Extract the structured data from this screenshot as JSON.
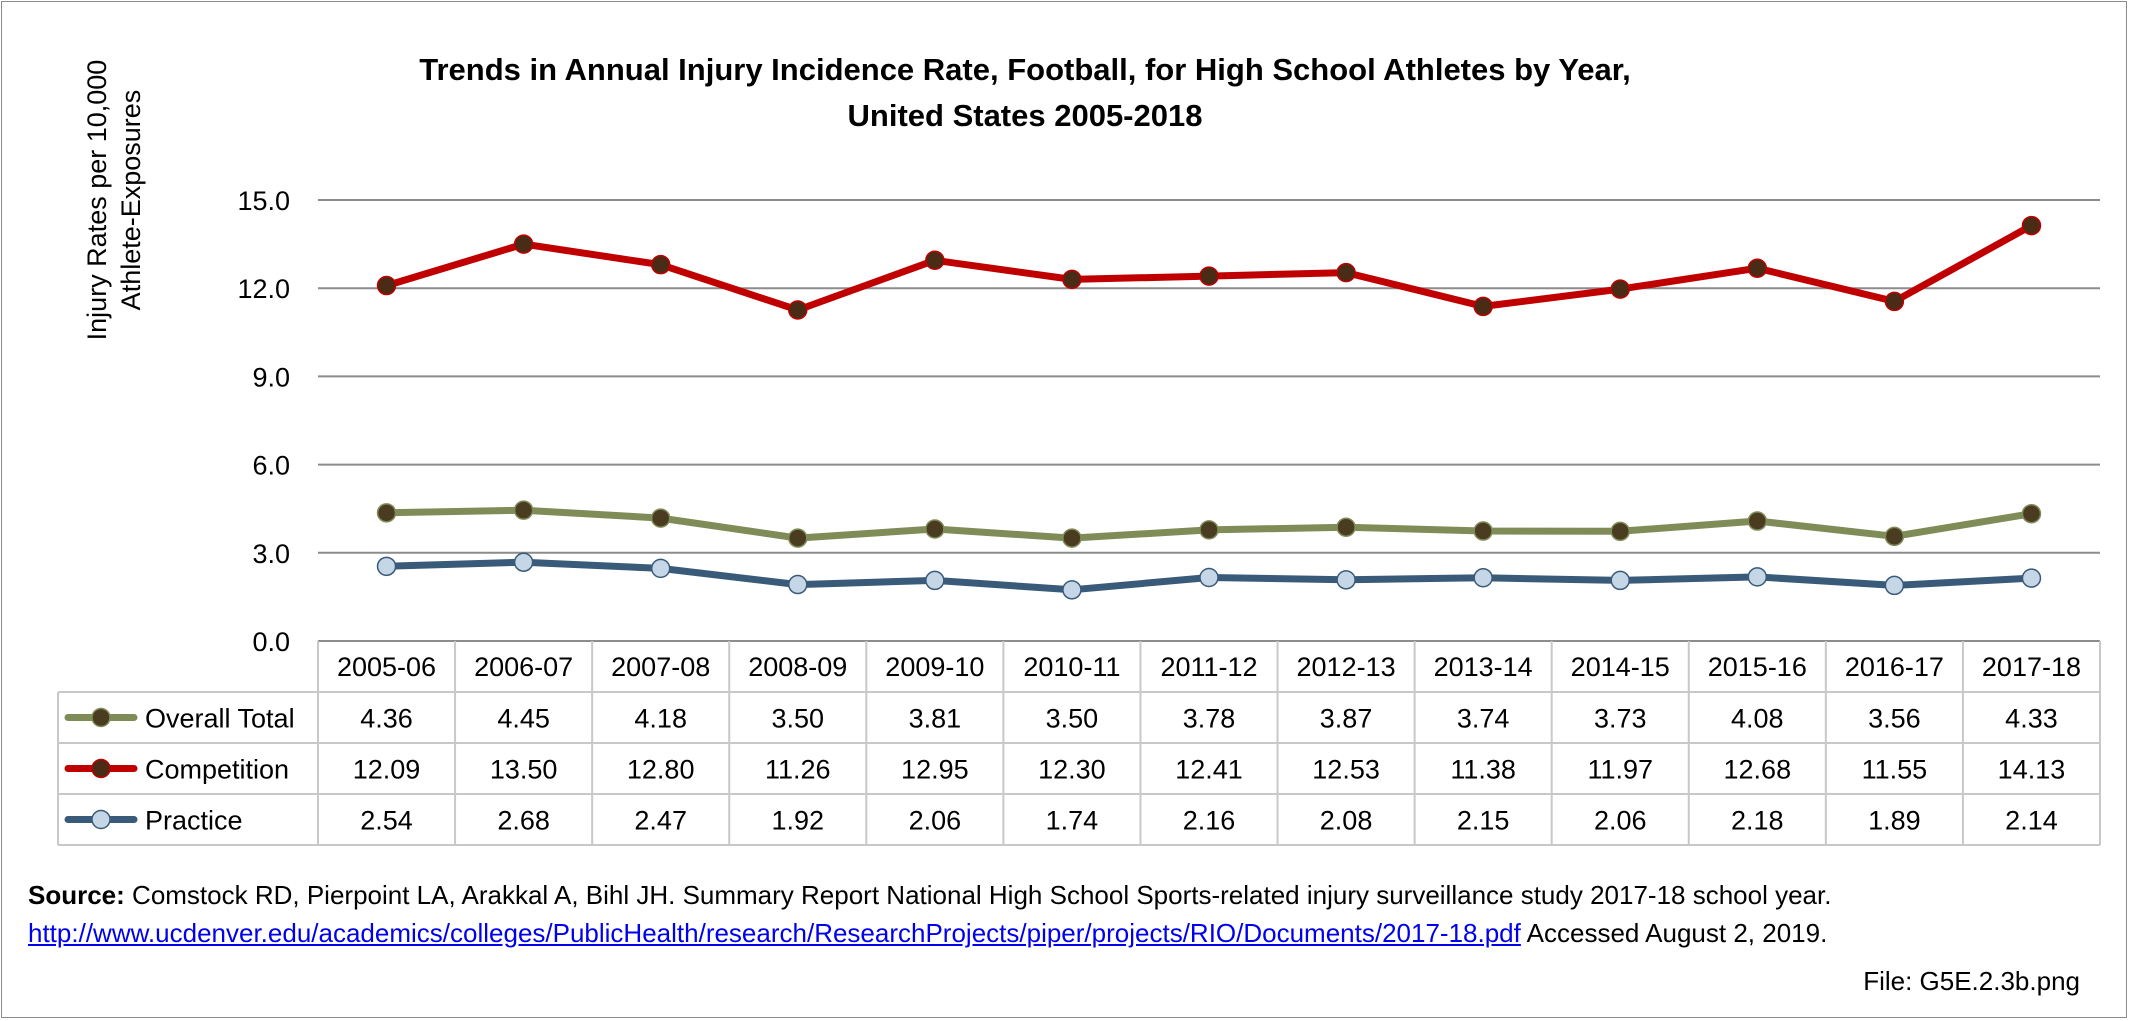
{
  "chart_data": {
    "type": "line",
    "title_line1": "Trends in Annual Injury Incidence Rate, Football, for High School Athletes by Year,",
    "title_line2": "United States 2005-2018",
    "ylabel_line1": "Injury Rates per 10,000",
    "ylabel_line2": "Athlete-Exposures",
    "ylim": [
      0,
      15
    ],
    "yticks": [
      0,
      3,
      6,
      9,
      12,
      15
    ],
    "ytick_labels": [
      "0.0",
      "3.0",
      "6.0",
      "9.0",
      "12.0",
      "15.0"
    ],
    "grid": true,
    "legend": "data-table",
    "categories": [
      "2005-06",
      "2006-07",
      "2007-08",
      "2008-09",
      "2009-10",
      "2010-11",
      "2011-12",
      "2012-13",
      "2013-14",
      "2014-15",
      "2015-16",
      "2016-17",
      "2017-18"
    ],
    "series": [
      {
        "name": "Overall Total",
        "line_color": "#7f8c58",
        "marker_color": "#4a3c20",
        "values": [
          4.36,
          4.45,
          4.18,
          3.5,
          3.81,
          3.5,
          3.78,
          3.87,
          3.74,
          3.73,
          4.08,
          3.56,
          4.33
        ],
        "labels": [
          "4.36",
          "4.45",
          "4.18",
          "3.50",
          "3.81",
          "3.50",
          "3.78",
          "3.87",
          "3.74",
          "3.73",
          "4.08",
          "3.56",
          "4.33"
        ]
      },
      {
        "name": "Competition",
        "line_color": "#c00000",
        "marker_color": "#4a2b16",
        "values": [
          12.09,
          13.5,
          12.8,
          11.26,
          12.95,
          12.3,
          12.41,
          12.53,
          11.38,
          11.97,
          12.68,
          11.55,
          14.13
        ],
        "labels": [
          "12.09",
          "13.50",
          "12.80",
          "11.26",
          "12.95",
          "12.30",
          "12.41",
          "12.53",
          "11.38",
          "11.97",
          "12.68",
          "11.55",
          "14.13"
        ]
      },
      {
        "name": "Practice",
        "line_color": "#3a5a7a",
        "marker_color": "#c5d6e6",
        "values": [
          2.54,
          2.68,
          2.47,
          1.92,
          2.06,
          1.74,
          2.16,
          2.08,
          2.15,
          2.06,
          2.18,
          1.89,
          2.14
        ],
        "labels": [
          "2.54",
          "2.68",
          "2.47",
          "1.92",
          "2.06",
          "1.74",
          "2.16",
          "2.08",
          "2.15",
          "2.06",
          "2.18",
          "1.89",
          "2.14"
        ]
      }
    ]
  },
  "source": {
    "label": "Source:",
    "text": " Comstock RD, Pierpoint LA, Arakkal A, Bihl JH. Summary Report National High School Sports-related injury surveillance study 2017-18 school year.",
    "link": "http://www.ucdenver.edu/academics/colleges/PublicHealth/research/ResearchProjects/piper/projects/RIO/Documents/2017-18.pdf",
    "accessed": "  Accessed August 2, 2019."
  },
  "file_label": "File: G5E.2.3b.png"
}
